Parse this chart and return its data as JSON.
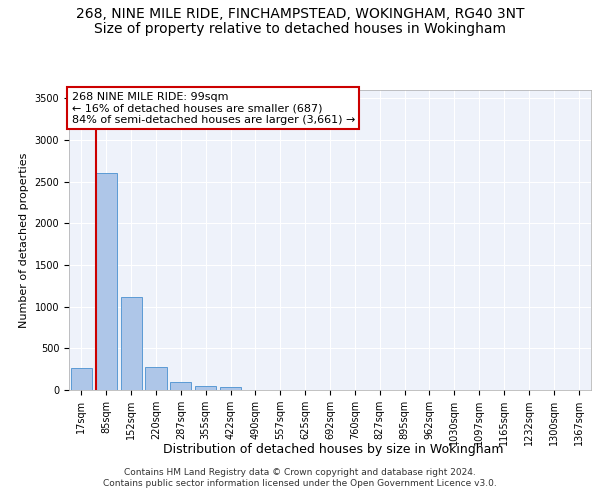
{
  "title1": "268, NINE MILE RIDE, FINCHAMPSTEAD, WOKINGHAM, RG40 3NT",
  "title2": "Size of property relative to detached houses in Wokingham",
  "xlabel": "Distribution of detached houses by size in Wokingham",
  "ylabel": "Number of detached properties",
  "categories": [
    "17sqm",
    "85sqm",
    "152sqm",
    "220sqm",
    "287sqm",
    "355sqm",
    "422sqm",
    "490sqm",
    "557sqm",
    "625sqm",
    "692sqm",
    "760sqm",
    "827sqm",
    "895sqm",
    "962sqm",
    "1030sqm",
    "1097sqm",
    "1165sqm",
    "1232sqm",
    "1300sqm",
    "1367sqm"
  ],
  "values": [
    270,
    2600,
    1120,
    280,
    95,
    45,
    35,
    0,
    0,
    0,
    0,
    0,
    0,
    0,
    0,
    0,
    0,
    0,
    0,
    0,
    0
  ],
  "bar_color": "#aec6e8",
  "bar_edge_color": "#5b9bd5",
  "vline_color": "#cc0000",
  "vline_x_index": 0.6,
  "ylim": [
    0,
    3600
  ],
  "yticks": [
    0,
    500,
    1000,
    1500,
    2000,
    2500,
    3000,
    3500
  ],
  "annotation_title": "268 NINE MILE RIDE: 99sqm",
  "annotation_line1": "← 16% of detached houses are smaller (687)",
  "annotation_line2": "84% of semi-detached houses are larger (3,661) →",
  "annotation_box_color": "#ffffff",
  "annotation_border_color": "#cc0000",
  "footer1": "Contains HM Land Registry data © Crown copyright and database right 2024.",
  "footer2": "Contains public sector information licensed under the Open Government Licence v3.0.",
  "bg_color": "#eef2fa",
  "title1_fontsize": 10,
  "title2_fontsize": 10,
  "footer_fontsize": 6.5,
  "ann_fontsize": 8,
  "ylabel_fontsize": 8,
  "xlabel_fontsize": 9,
  "tick_fontsize": 7
}
